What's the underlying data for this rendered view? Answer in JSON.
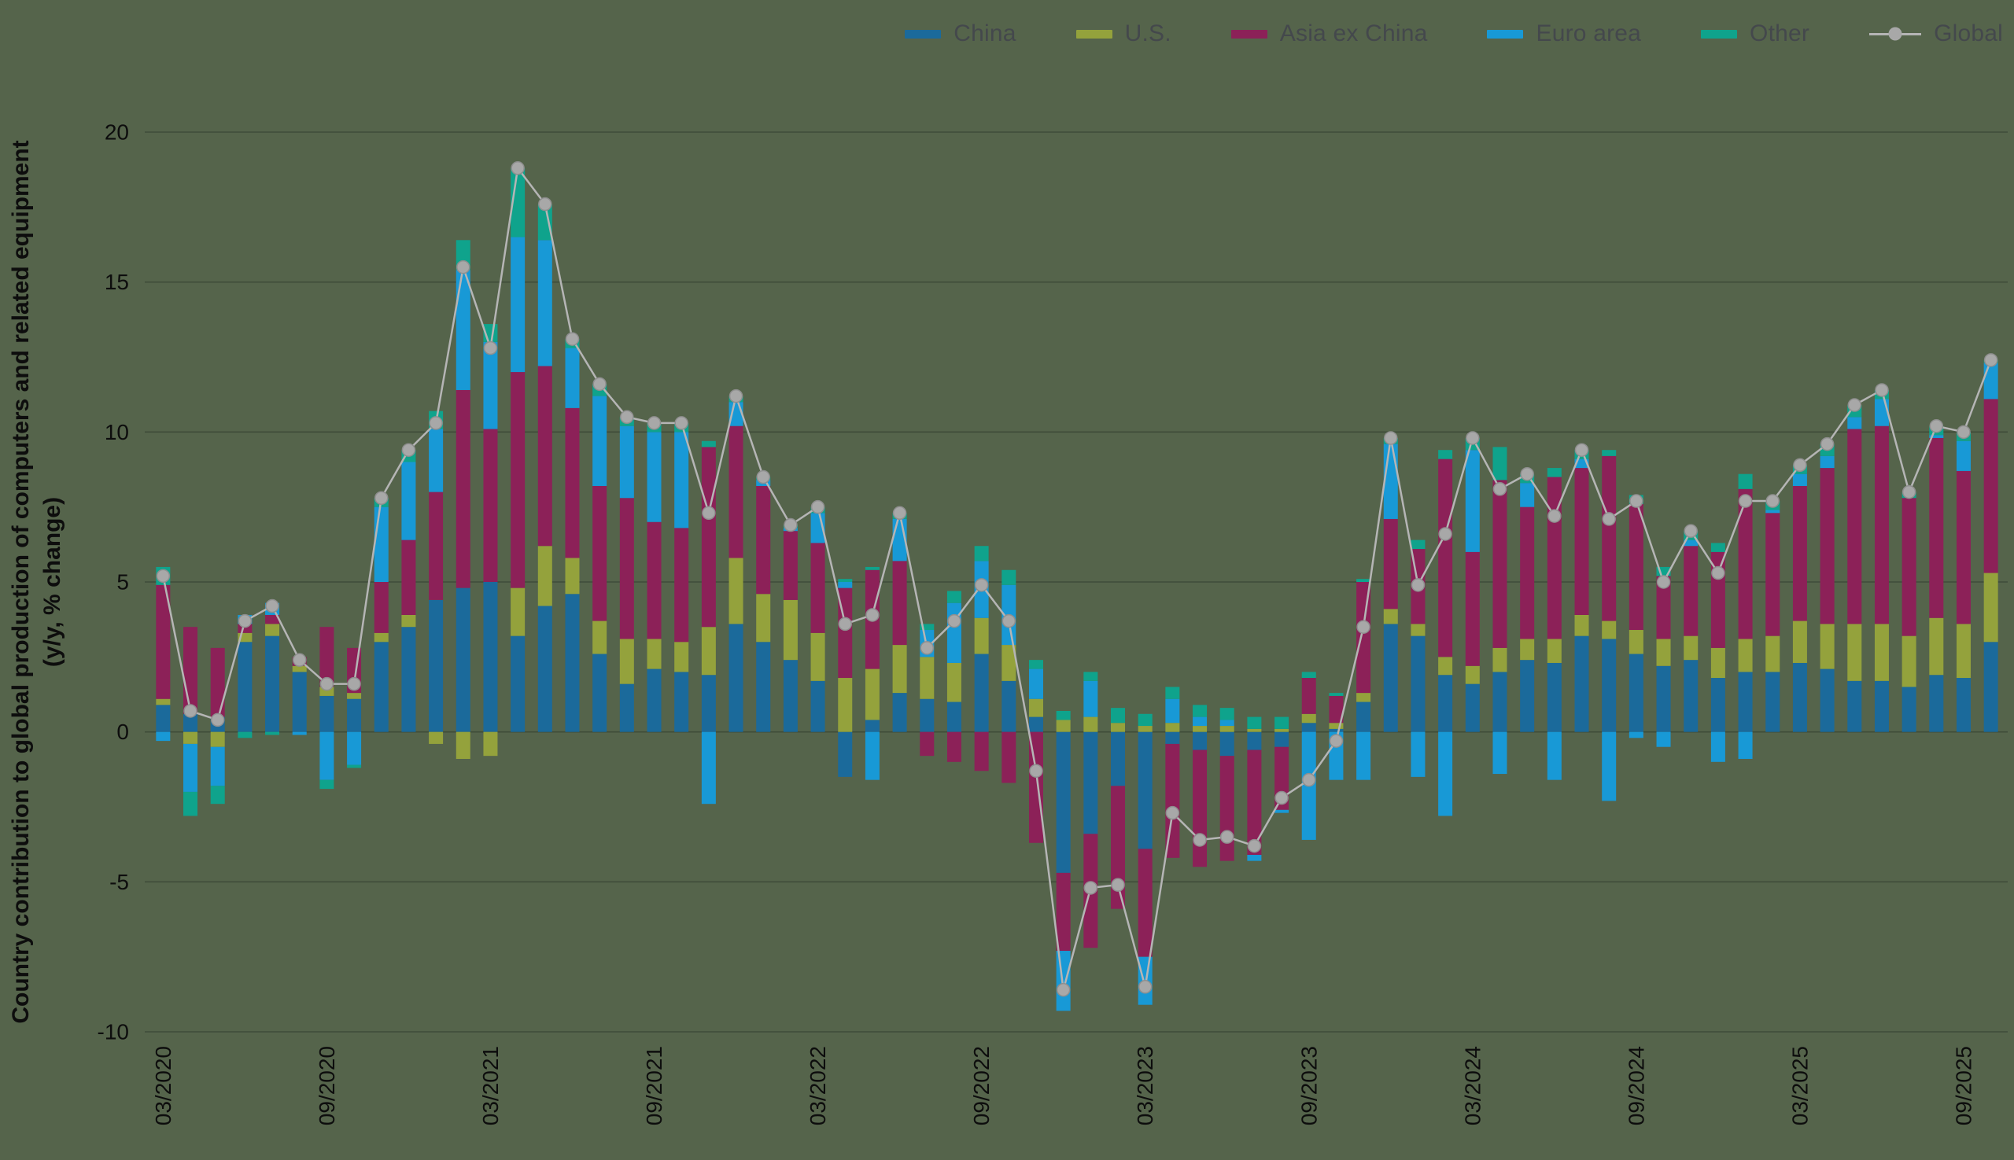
{
  "style": {
    "background": "#55644b",
    "grid": "#3c4836",
    "tick_text": "#0d0d0d",
    "legend_text": "#44484c"
  },
  "legend": {
    "position": "top-right"
  },
  "chart_data": {
    "type": "bar",
    "stacked": true,
    "title": "",
    "ylabel_line1": "Country contribution to global production of computers and related equipment",
    "ylabel_line2": "(y/y, % change)",
    "ylim": [
      -10,
      20
    ],
    "yticks": [
      -10,
      -5,
      0,
      5,
      10,
      15,
      20
    ],
    "grid": true,
    "xticks": [
      "03/2020",
      "09/2020",
      "03/2021",
      "09/2021",
      "03/2022",
      "09/2022",
      "03/2023",
      "09/2023",
      "03/2024",
      "09/2024",
      "03/2025",
      "09/2025"
    ],
    "categories": [
      "03/2020",
      "04/2020",
      "05/2020",
      "06/2020",
      "07/2020",
      "08/2020",
      "09/2020",
      "10/2020",
      "11/2020",
      "12/2020",
      "01/2021",
      "02/2021",
      "03/2021",
      "04/2021",
      "05/2021",
      "06/2021",
      "07/2021",
      "08/2021",
      "09/2021",
      "10/2021",
      "11/2021",
      "12/2021",
      "01/2022",
      "02/2022",
      "03/2022",
      "04/2022",
      "05/2022",
      "06/2022",
      "07/2022",
      "08/2022",
      "09/2022",
      "10/2022",
      "11/2022",
      "12/2022",
      "01/2023",
      "02/2023",
      "03/2023",
      "04/2023",
      "05/2023",
      "06/2023",
      "07/2023",
      "08/2023",
      "09/2023",
      "10/2023",
      "11/2023",
      "12/2023",
      "01/2024",
      "02/2024",
      "03/2024",
      "04/2024",
      "05/2024",
      "06/2024",
      "07/2024",
      "08/2024",
      "09/2024",
      "10/2024",
      "11/2024",
      "12/2024",
      "01/2025",
      "02/2025",
      "03/2025",
      "04/2025",
      "05/2025",
      "06/2025",
      "07/2025",
      "08/2025",
      "09/2025",
      "10/2025"
    ],
    "series": [
      {
        "name": "China",
        "color": "#1b6a9b",
        "values": [
          0.9,
          0.6,
          0.5,
          3.0,
          3.2,
          2.0,
          1.2,
          1.1,
          3.0,
          3.5,
          4.4,
          4.8,
          5.0,
          3.2,
          4.2,
          4.6,
          2.6,
          1.6,
          2.1,
          2.0,
          1.9,
          3.6,
          3.0,
          2.4,
          1.7,
          -1.5,
          0.4,
          1.3,
          1.1,
          1.0,
          2.6,
          1.7,
          0.5,
          -4.7,
          -3.4,
          -1.8,
          -3.9,
          -0.4,
          -0.6,
          -0.8,
          -0.6,
          -0.5,
          0.3,
          0.1,
          1.0,
          3.6,
          3.2,
          1.9,
          1.6,
          2.0,
          2.4,
          2.3,
          3.2,
          3.1,
          2.6,
          2.2,
          2.4,
          1.8,
          2.0,
          2.0,
          2.3,
          2.1,
          1.7,
          1.7,
          1.5,
          1.9,
          1.8,
          3.0
        ]
      },
      {
        "name": "U.S.",
        "color": "#94a23c",
        "values": [
          0.2,
          -0.4,
          -0.5,
          0.3,
          0.4,
          0.2,
          0.3,
          0.2,
          0.3,
          0.4,
          -0.4,
          -0.9,
          -0.8,
          1.6,
          2.0,
          1.2,
          1.1,
          1.5,
          1.0,
          1.0,
          1.6,
          2.2,
          1.6,
          2.0,
          1.6,
          1.8,
          1.7,
          1.6,
          1.4,
          1.3,
          1.2,
          1.2,
          0.6,
          0.4,
          0.5,
          0.3,
          0.2,
          0.3,
          0.2,
          0.2,
          0.1,
          0.1,
          0.3,
          0.2,
          0.3,
          0.5,
          0.4,
          0.6,
          0.6,
          0.8,
          0.7,
          0.8,
          0.7,
          0.6,
          0.8,
          0.9,
          0.8,
          1.0,
          1.1,
          1.2,
          1.4,
          1.5,
          1.9,
          1.9,
          1.7,
          1.9,
          1.8,
          2.3
        ]
      },
      {
        "name": "Asia ex China",
        "color": "#8c2158",
        "values": [
          3.8,
          2.9,
          2.3,
          0.3,
          0.3,
          0.3,
          2.0,
          1.5,
          1.7,
          2.5,
          3.6,
          6.6,
          5.1,
          7.2,
          6.0,
          5.0,
          4.5,
          4.7,
          3.9,
          3.8,
          6.0,
          4.4,
          3.6,
          2.3,
          3.0,
          3.0,
          3.3,
          2.8,
          -0.8,
          -1.0,
          -1.3,
          -1.7,
          -3.7,
          -2.6,
          -3.8,
          -4.1,
          -3.6,
          -3.8,
          -3.9,
          -3.5,
          -3.5,
          -2.1,
          1.2,
          0.9,
          3.7,
          3.0,
          2.5,
          6.6,
          3.8,
          5.6,
          4.4,
          5.4,
          4.9,
          5.5,
          4.2,
          2.1,
          3.0,
          3.2,
          5.0,
          4.1,
          4.5,
          5.2,
          6.5,
          6.6,
          4.6,
          6.0,
          5.1,
          5.8
        ]
      },
      {
        "name": "Euro area",
        "color": "#1899d6",
        "values": [
          -0.3,
          -1.6,
          -1.3,
          0.3,
          0.4,
          -0.1,
          -1.6,
          -1.1,
          2.5,
          2.6,
          2.1,
          4.0,
          2.9,
          4.5,
          4.2,
          2.0,
          3.0,
          2.4,
          3.0,
          3.2,
          -2.4,
          0.8,
          0.2,
          0.1,
          1.0,
          0.2,
          -1.6,
          1.4,
          0.9,
          2.0,
          1.9,
          2.0,
          1.0,
          -2.0,
          1.2,
          0.0,
          -1.6,
          0.8,
          0.3,
          0.2,
          -0.2,
          -0.1,
          -3.6,
          -1.6,
          -1.6,
          2.5,
          -1.5,
          -2.8,
          3.4,
          -1.4,
          0.8,
          -1.6,
          0.3,
          -2.3,
          -0.2,
          -0.5,
          0.2,
          -1.0,
          -0.9,
          0.1,
          0.4,
          0.4,
          0.4,
          0.9,
          0.0,
          0.1,
          1.0,
          1.2
        ]
      },
      {
        "name": "Other",
        "color": "#0fa38c",
        "values": [
          0.6,
          -0.8,
          -0.6,
          -0.2,
          -0.1,
          0.0,
          -0.3,
          -0.1,
          0.3,
          0.4,
          0.6,
          1.0,
          0.6,
          2.3,
          1.2,
          0.3,
          0.4,
          0.3,
          0.3,
          0.3,
          0.2,
          0.2,
          0.1,
          0.1,
          0.2,
          0.1,
          0.1,
          0.2,
          0.2,
          0.4,
          0.5,
          0.5,
          0.3,
          0.3,
          0.3,
          0.5,
          0.4,
          0.4,
          0.4,
          0.4,
          0.4,
          0.4,
          0.2,
          0.1,
          0.1,
          0.2,
          0.3,
          0.3,
          0.4,
          1.1,
          0.3,
          0.3,
          0.3,
          0.2,
          0.3,
          0.3,
          0.3,
          0.3,
          0.5,
          0.3,
          0.3,
          0.4,
          0.4,
          0.3,
          0.2,
          0.3,
          0.3,
          0.1
        ]
      }
    ],
    "line_series": {
      "name": "Global",
      "color": "#b5b5b5",
      "marker_color": "#a8a8a8",
      "marker_stroke": "#8f8f8f",
      "values": [
        5.2,
        0.7,
        0.4,
        3.7,
        4.2,
        2.4,
        1.6,
        1.6,
        7.8,
        9.4,
        10.3,
        15.5,
        12.8,
        18.8,
        17.6,
        13.1,
        11.6,
        10.5,
        10.3,
        10.3,
        7.3,
        11.2,
        8.5,
        6.9,
        7.5,
        3.6,
        3.9,
        7.3,
        2.8,
        3.7,
        4.9,
        3.7,
        -1.3,
        -8.6,
        -5.2,
        -5.1,
        -8.5,
        -2.7,
        -3.6,
        -3.5,
        -3.8,
        -2.2,
        -1.6,
        -0.3,
        3.5,
        9.8,
        4.9,
        6.6,
        9.8,
        8.1,
        8.6,
        7.2,
        9.4,
        7.1,
        7.7,
        5.0,
        6.7,
        5.3,
        7.7,
        7.7,
        8.9,
        9.6,
        10.9,
        11.4,
        8.0,
        10.2,
        10.0,
        12.4
      ]
    }
  }
}
